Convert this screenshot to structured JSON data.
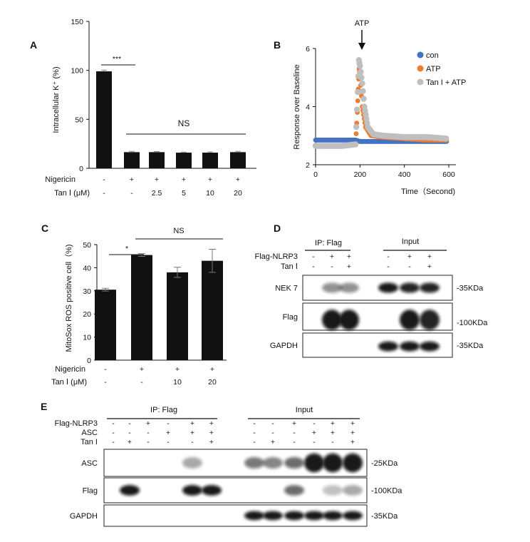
{
  "panels": {
    "A": {
      "label": "A",
      "chart_data": {
        "type": "bar",
        "ylabel": "Intracellular K⁺ (%)",
        "ylim": [
          0,
          150
        ],
        "yticks": [
          "0",
          "50",
          "100",
          "150"
        ],
        "values": [
          99,
          16.5,
          16.5,
          16,
          16,
          16.5
        ],
        "errors": [
          1.2,
          0.8,
          0.6,
          0.6,
          0.8,
          0.8
        ],
        "row_labels": [
          "Nigericin",
          "Tan Ⅰ (μM)"
        ],
        "row_values": [
          [
            "-",
            "+",
            "+",
            "+",
            "+",
            "+"
          ],
          [
            "-",
            "-",
            "2.5",
            "5",
            "10",
            "20"
          ]
        ],
        "annotations": [
          "***",
          "NS"
        ]
      }
    },
    "B": {
      "label": "B",
      "chart_data": {
        "type": "scatter",
        "ylabel": "Response over Baseline",
        "xlabel": "Time（Second)",
        "xlim": [
          0,
          600
        ],
        "ylim": [
          2,
          6
        ],
        "xticks": [
          "0",
          "200",
          "400",
          "600"
        ],
        "yticks": [
          "2",
          "4",
          "6"
        ],
        "arrow_label": "ATP",
        "arrow_x": 195,
        "series": [
          {
            "name": "con",
            "color": "#4472c4",
            "x": [
              0,
              60,
              120,
              180,
              200,
              240,
              300,
              400,
              500,
              590
            ],
            "y": [
              2.85,
              2.85,
              2.85,
              2.85,
              2.8,
              2.8,
              2.8,
              2.8,
              2.8,
              2.8
            ]
          },
          {
            "name": "ATP",
            "color": "#ed7d31",
            "x": [
              0,
              60,
              120,
              180,
              188,
              192,
              196,
              200,
              210,
              225,
              250,
              300,
              400,
              500,
              590
            ],
            "y": [
              2.65,
              2.65,
              2.65,
              2.7,
              3.8,
              4.6,
              5.3,
              5.1,
              4.0,
              3.3,
              3.0,
              2.95,
              2.9,
              2.85,
              2.85
            ]
          },
          {
            "name": "Tan I + ATP",
            "color": "#bfbfbf",
            "x": [
              0,
              60,
              120,
              180,
              190,
              195,
              200,
              210,
              220,
              235,
              260,
              300,
              400,
              500,
              590
            ],
            "y": [
              2.65,
              2.65,
              2.65,
              2.7,
              4.5,
              5.6,
              5.4,
              4.8,
              4.0,
              3.3,
              3.05,
              3.0,
              2.95,
              2.95,
              2.9
            ]
          }
        ]
      }
    },
    "C": {
      "label": "C",
      "chart_data": {
        "type": "bar",
        "ylabel": "MitoSox ROS positive cell（%)",
        "ylim": [
          0,
          50
        ],
        "yticks": [
          "0",
          "10",
          "20",
          "30",
          "40",
          "50"
        ],
        "values": [
          30.5,
          45.5,
          38,
          43
        ],
        "errors": [
          0.6,
          0.6,
          2.2,
          5
        ],
        "row_labels": [
          "Nigericin",
          "Tan Ⅰ (μM)"
        ],
        "row_values": [
          [
            "-",
            "+",
            "+",
            "+"
          ],
          [
            "-",
            "-",
            "10",
            "20"
          ]
        ],
        "annotations": [
          "*",
          "NS"
        ]
      }
    },
    "D": {
      "label": "D",
      "group_left": "IP: Flag",
      "group_right": "Input",
      "row_labels": [
        "Flag-NLRP3",
        "Tan Ⅰ"
      ],
      "row_values": [
        [
          "-",
          "+",
          "+",
          "-",
          "+",
          "+"
        ],
        [
          "-",
          "-",
          "+",
          "-",
          "-",
          "+"
        ]
      ],
      "blots": [
        {
          "name": "NEK 7",
          "size": "-35KDa"
        },
        {
          "name": "Flag",
          "size": "-100KDa"
        },
        {
          "name": "GAPDH",
          "size": "-35KDa"
        }
      ]
    },
    "E": {
      "label": "E",
      "group_left": "IP: Flag",
      "group_right": "Input",
      "row_labels": [
        "Flag-NLRP3",
        "ASC",
        "Tan I"
      ],
      "row_values": [
        [
          "-",
          "-",
          "+",
          "-",
          "+",
          "+"
        ],
        [
          "-",
          "-",
          "-",
          "+",
          "+",
          "+"
        ],
        [
          "-",
          "+",
          "-",
          "-",
          "-",
          "+"
        ]
      ],
      "blots": [
        {
          "name": "ASC",
          "size": "-25KDa"
        },
        {
          "name": "Flag",
          "size": "-100KDa"
        },
        {
          "name": "GAPDH",
          "size": "-35KDa"
        }
      ]
    }
  }
}
